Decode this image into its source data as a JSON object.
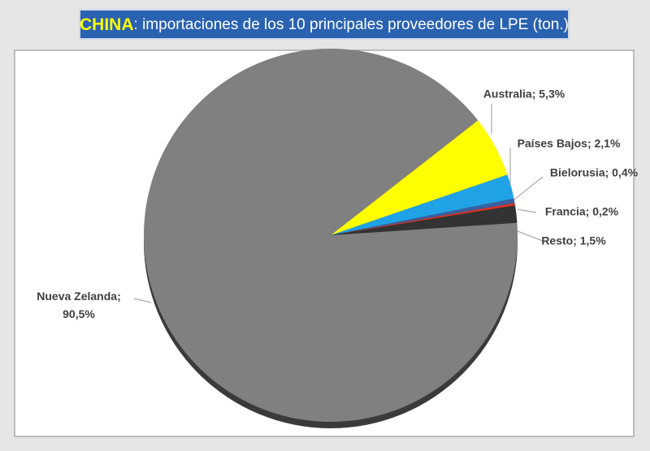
{
  "chart_data": {
    "type": "pie",
    "title_highlight": "CHINA",
    "title": ": importaciones de los 10 principales proveedores de LPE (ton.)",
    "values": [
      5.3,
      2.1,
      0.4,
      0.2,
      1.5,
      90.5
    ],
    "value_labels": [
      "Australia; 5,3%",
      "Países Bajos; 2,1%",
      "Bielorusia; 0,4%",
      "Francia; 0,2%",
      "Resto; 1,5%",
      "Nueva Zelanda;\n90,5%"
    ],
    "colors": [
      "#ffff00",
      "#1fa3e6",
      "#3b5f9e",
      "#e0301e",
      "#333333",
      "#808080"
    ]
  }
}
